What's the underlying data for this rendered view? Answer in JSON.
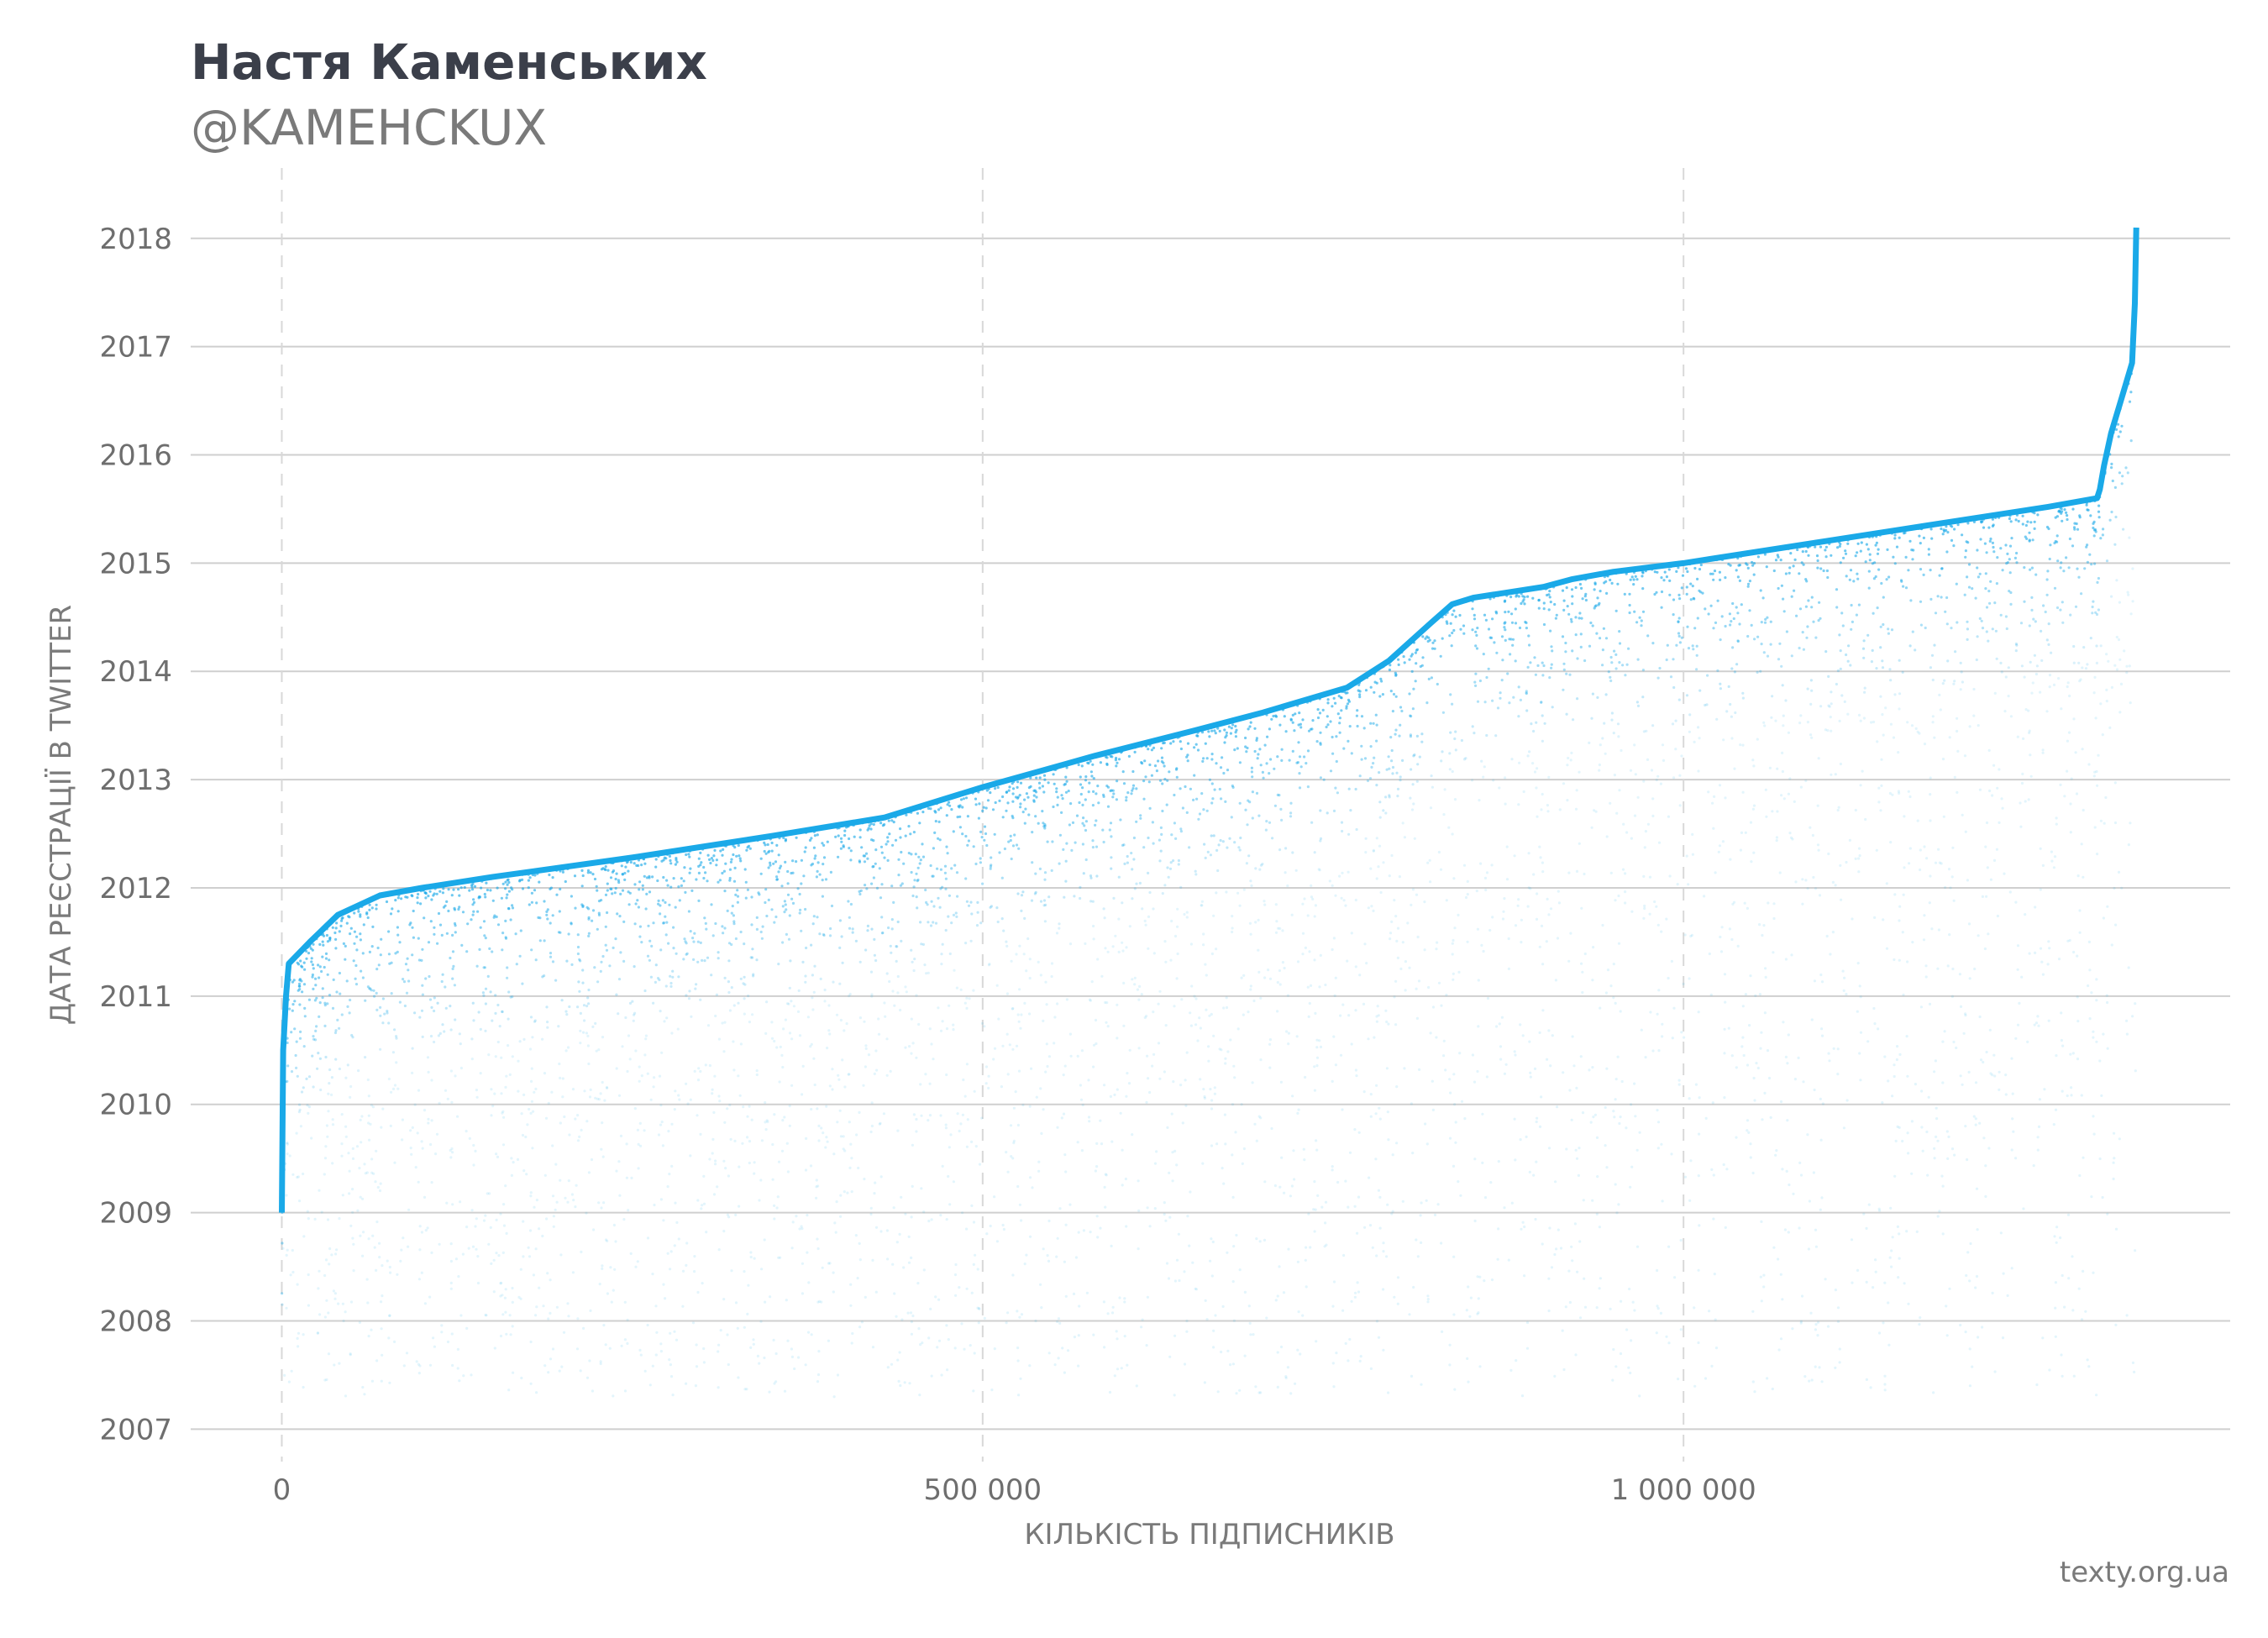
{
  "title": "Настя Каменських",
  "subtitle": "@KAMEHCKUX",
  "source": "texty.org.ua",
  "colors": {
    "accent": "#1aa9e8",
    "grid": "#cfcfcf",
    "text": "#6e6e6e",
    "title": "#3b3f4a"
  },
  "chart_data": {
    "type": "scatter",
    "xlabel": "КІЛЬКІСТЬ ПІДПИСНИКІВ",
    "ylabel": "ДАТА РЕЄСТРАЦІЇ В TWITTER",
    "x_ticks": [
      {
        "value": 0,
        "label": "0"
      },
      {
        "value": 500000,
        "label": "500 000"
      },
      {
        "value": 1000000,
        "label": "1 000 000"
      }
    ],
    "y_ticks": [
      {
        "value": 2007,
        "label": "2007"
      },
      {
        "value": 2008,
        "label": "2008"
      },
      {
        "value": 2009,
        "label": "2009"
      },
      {
        "value": 2010,
        "label": "2010"
      },
      {
        "value": 2011,
        "label": "2011"
      },
      {
        "value": 2012,
        "label": "2012"
      },
      {
        "value": 2013,
        "label": "2013"
      },
      {
        "value": 2014,
        "label": "2014"
      },
      {
        "value": 2015,
        "label": "2015"
      },
      {
        "value": 2016,
        "label": "2016"
      },
      {
        "value": 2017,
        "label": "2017"
      },
      {
        "value": 2018,
        "label": "2018"
      }
    ],
    "xlim": [
      -65000,
      1390000
    ],
    "ylim": [
      2006.7,
      2018.65
    ],
    "grid": true,
    "envelope": {
      "x": [
        0,
        1000,
        3000,
        5000,
        20000,
        40000,
        70000,
        100000,
        150000,
        250000,
        350000,
        430000,
        500000,
        580000,
        650000,
        700000,
        760000,
        790000,
        820000,
        835000,
        850000,
        900000,
        920000,
        950000,
        1000000,
        1100000,
        1150000,
        1200000,
        1260000,
        1295000,
        1297000,
        1300000,
        1305000,
        1312000,
        1320000,
        1322000,
        1323000
      ],
      "y": [
        2009.0,
        2010.5,
        2011.0,
        2011.3,
        2011.5,
        2011.75,
        2011.93,
        2012.0,
        2012.1,
        2012.28,
        2012.48,
        2012.65,
        2012.93,
        2013.22,
        2013.45,
        2013.62,
        2013.85,
        2014.1,
        2014.45,
        2014.62,
        2014.68,
        2014.78,
        2014.85,
        2014.92,
        2015.0,
        2015.2,
        2015.3,
        2015.4,
        2015.52,
        2015.6,
        2015.68,
        2015.9,
        2016.2,
        2016.5,
        2016.85,
        2017.4,
        2018.1
      ]
    }
  }
}
